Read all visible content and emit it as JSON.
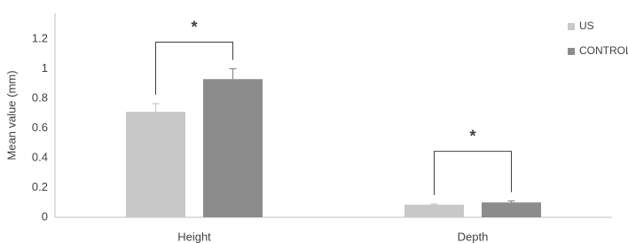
{
  "chart_data": {
    "type": "bar",
    "y_label": "Mean value (mm)",
    "categories": [
      "Height",
      "Depth"
    ],
    "series": [
      {
        "name": "US",
        "color": "#c8c8c8",
        "values": [
          0.71,
          0.085
        ],
        "errors": [
          0.055,
          0.005
        ]
      },
      {
        "name": "CONTROL",
        "color": "#8c8c8c",
        "values": [
          0.93,
          0.1
        ],
        "errors": [
          0.07,
          0.01
        ]
      }
    ],
    "ylim": [
      0,
      1.2
    ],
    "yticks": [
      0,
      0.2,
      0.4,
      0.6,
      0.8,
      1,
      1.2
    ],
    "annotations": [
      "*",
      "*"
    ],
    "grid": false,
    "legend": "right"
  }
}
